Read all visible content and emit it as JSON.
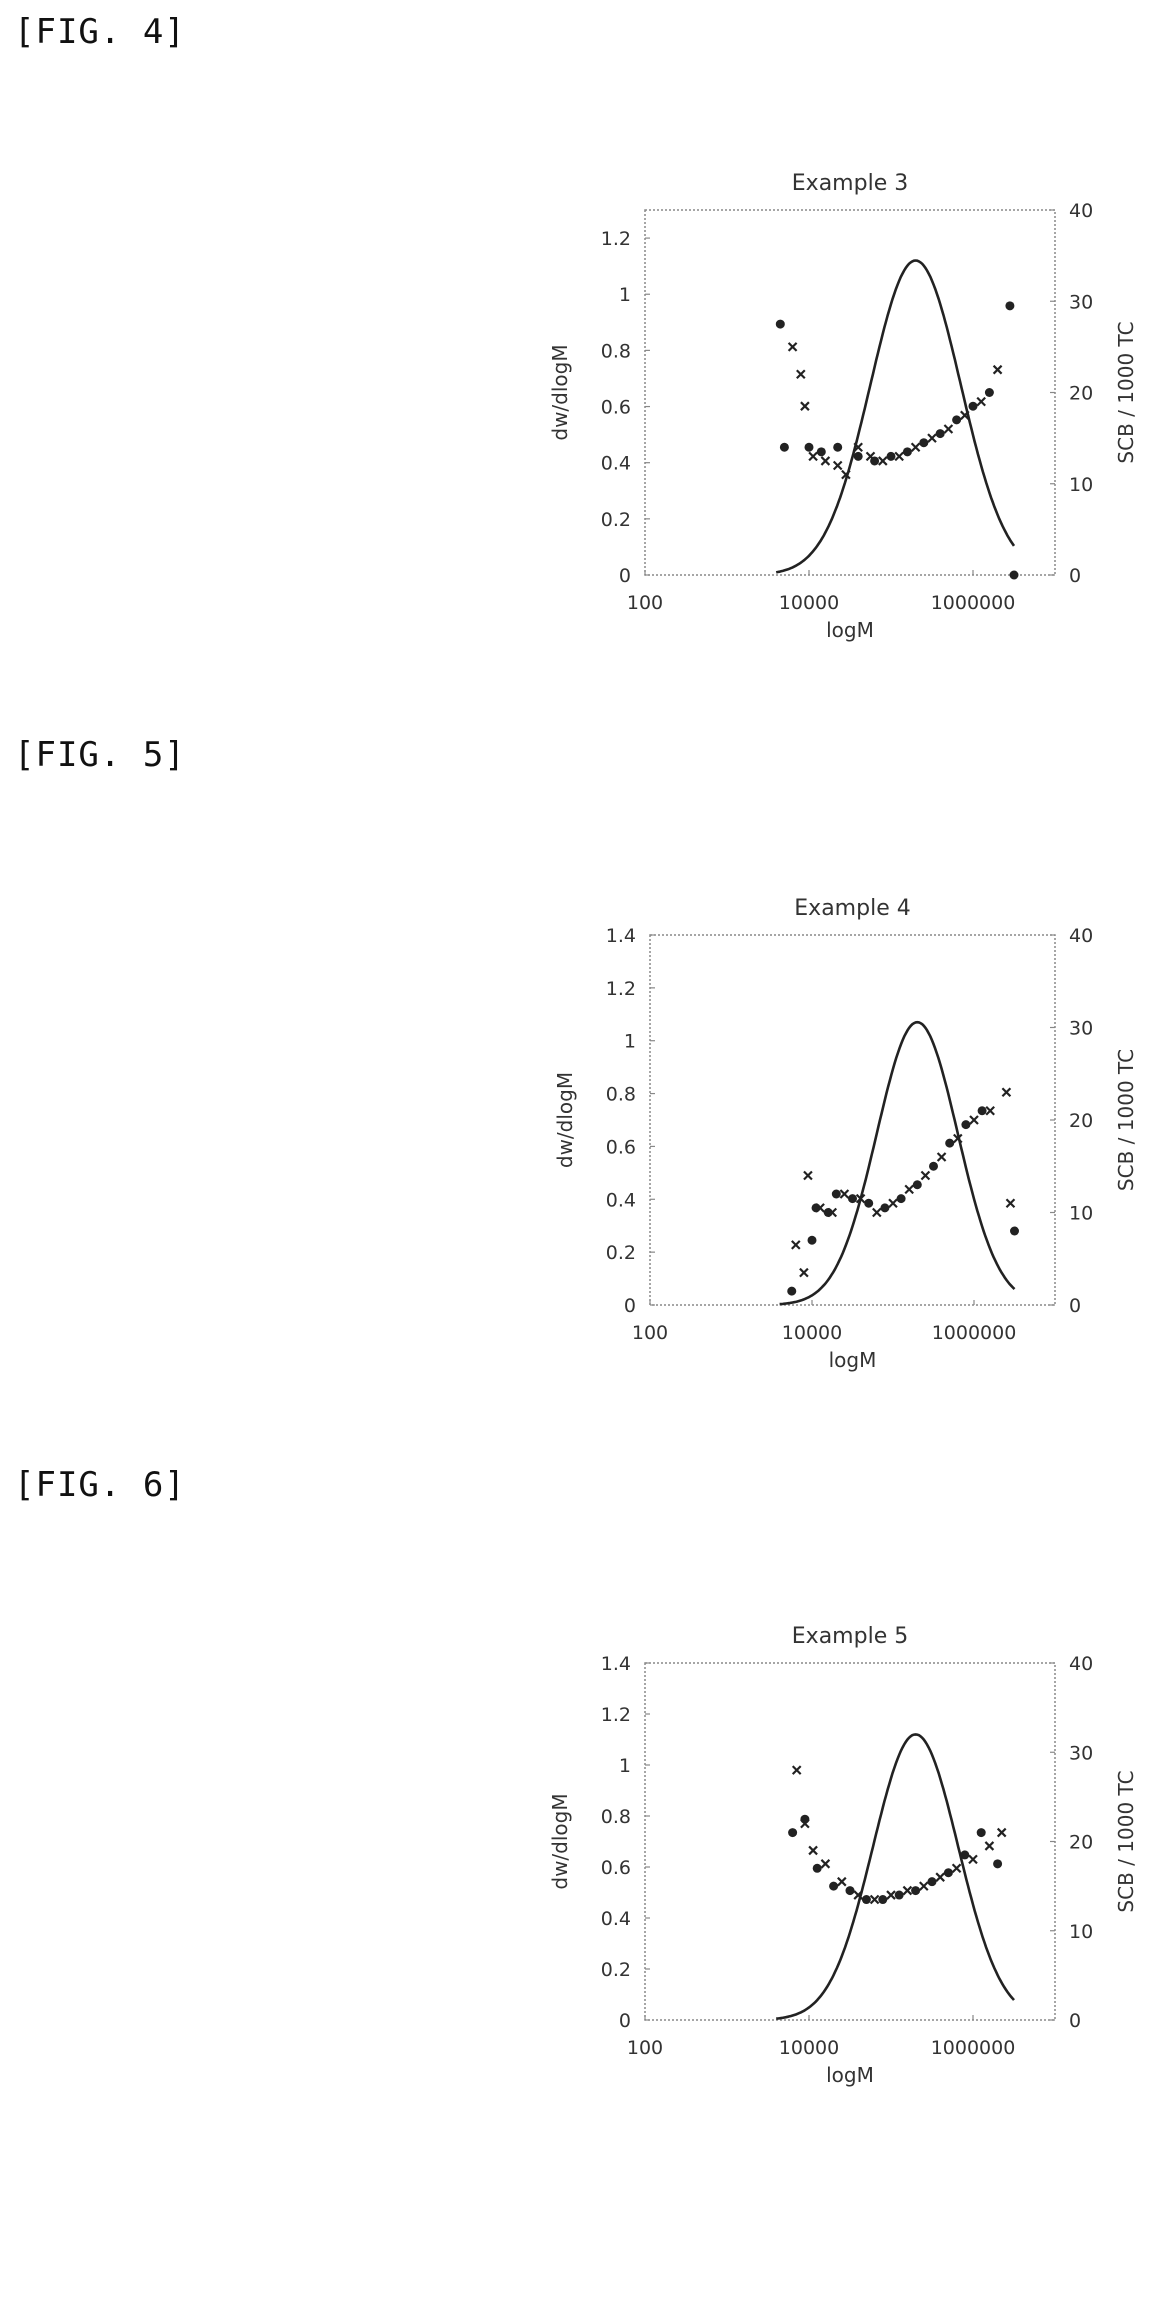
{
  "figures": [
    {
      "label": "[FIG. 4]"
    },
    {
      "label": "[FIG. 5]"
    },
    {
      "label": "[FIG. 6]"
    }
  ],
  "chart_data": [
    {
      "type": "line",
      "title": "Example 3",
      "xlabel": "logM",
      "ylabel": "dw/dlogM",
      "y2label": "SCB / 1000 TC",
      "xscale": "log",
      "xlim": [
        100,
        10000000
      ],
      "xticks": [
        "100",
        "10000",
        "1000000"
      ],
      "ylim": [
        0,
        1.3
      ],
      "yticks": [
        "0",
        "0.2",
        "0.4",
        "0.6",
        "0.8",
        "1",
        "1.2"
      ],
      "y2lim": [
        0,
        40
      ],
      "y2ticks": [
        "0",
        "10",
        "20",
        "30",
        "40"
      ],
      "grid": false,
      "series": [
        {
          "kind": "curve",
          "peak_logM": 5.3,
          "peak": 1.12,
          "sigma": 0.55
        },
        {
          "kind": "dots",
          "axis": "right",
          "points": [
            [
              3.65,
              27.5
            ],
            [
              3.7,
              14
            ],
            [
              4.0,
              14
            ],
            [
              4.15,
              13.5
            ],
            [
              4.35,
              14
            ],
            [
              4.6,
              13
            ],
            [
              4.8,
              12.5
            ],
            [
              5.0,
              13
            ],
            [
              5.2,
              13.5
            ],
            [
              5.4,
              14.5
            ],
            [
              5.6,
              15.5
            ],
            [
              5.8,
              17
            ],
            [
              6.0,
              18.5
            ],
            [
              6.2,
              20
            ],
            [
              6.45,
              29.5
            ],
            [
              6.5,
              0
            ]
          ]
        },
        {
          "kind": "crosses",
          "axis": "right",
          "points": [
            [
              3.8,
              25
            ],
            [
              3.9,
              22
            ],
            [
              3.95,
              18.5
            ],
            [
              4.05,
              13
            ],
            [
              4.2,
              12.5
            ],
            [
              4.35,
              12
            ],
            [
              4.45,
              11
            ],
            [
              4.6,
              14
            ],
            [
              4.75,
              13
            ],
            [
              4.9,
              12.5
            ],
            [
              5.1,
              13
            ],
            [
              5.3,
              14
            ],
            [
              5.5,
              15
            ],
            [
              5.7,
              16
            ],
            [
              5.9,
              17.5
            ],
            [
              6.1,
              19
            ],
            [
              6.3,
              22.5
            ]
          ]
        }
      ]
    },
    {
      "type": "line",
      "title": "Example 4",
      "xlabel": "logM",
      "ylabel": "dw/dlogM",
      "y2label": "SCB / 1000 TC",
      "xscale": "log",
      "xlim": [
        100,
        10000000
      ],
      "xticks": [
        "100",
        "10000",
        "1000000"
      ],
      "ylim": [
        0,
        1.4
      ],
      "yticks": [
        "0",
        "0.2",
        "0.4",
        "0.6",
        "0.8",
        "1",
        "1.2",
        "1.4"
      ],
      "y2lim": [
        0,
        40
      ],
      "y2ticks": [
        "0",
        "10",
        "20",
        "30",
        "40"
      ],
      "grid": false,
      "series": [
        {
          "kind": "curve",
          "peak_logM": 5.3,
          "peak": 1.07,
          "sigma": 0.5
        },
        {
          "kind": "dots",
          "axis": "right",
          "points": [
            [
              3.75,
              1.5
            ],
            [
              4.0,
              7
            ],
            [
              4.05,
              10.5
            ],
            [
              4.2,
              10
            ],
            [
              4.3,
              12
            ],
            [
              4.5,
              11.5
            ],
            [
              4.7,
              11
            ],
            [
              4.9,
              10.5
            ],
            [
              5.1,
              11.5
            ],
            [
              5.3,
              13
            ],
            [
              5.5,
              15
            ],
            [
              5.7,
              17.5
            ],
            [
              5.9,
              19.5
            ],
            [
              6.1,
              21
            ],
            [
              6.5,
              8
            ]
          ]
        },
        {
          "kind": "crosses",
          "axis": "right",
          "points": [
            [
              3.8,
              6.5
            ],
            [
              3.9,
              3.5
            ],
            [
              3.95,
              14
            ],
            [
              4.1,
              10.5
            ],
            [
              4.25,
              10
            ],
            [
              4.4,
              12
            ],
            [
              4.6,
              11.5
            ],
            [
              4.8,
              10
            ],
            [
              5.0,
              11
            ],
            [
              5.2,
              12.5
            ],
            [
              5.4,
              14
            ],
            [
              5.6,
              16
            ],
            [
              5.8,
              18
            ],
            [
              6.0,
              20
            ],
            [
              6.2,
              21
            ],
            [
              6.4,
              23
            ],
            [
              6.45,
              11
            ]
          ]
        }
      ]
    },
    {
      "type": "line",
      "title": "Example 5",
      "xlabel": "logM",
      "ylabel": "dw/dlogM",
      "y2label": "SCB / 1000 TC",
      "xscale": "log",
      "xlim": [
        100,
        10000000
      ],
      "xticks": [
        "100",
        "10000",
        "1000000"
      ],
      "ylim": [
        0,
        1.4
      ],
      "yticks": [
        "0",
        "0.2",
        "0.4",
        "0.6",
        "0.8",
        "1",
        "1.2",
        "1.4"
      ],
      "y2lim": [
        0,
        40
      ],
      "y2ticks": [
        "0",
        "10",
        "20",
        "30",
        "40"
      ],
      "grid": false,
      "series": [
        {
          "kind": "curve",
          "peak_logM": 5.3,
          "peak": 1.12,
          "sigma": 0.52
        },
        {
          "kind": "dots",
          "axis": "right",
          "points": [
            [
              3.8,
              21
            ],
            [
              3.95,
              22.5
            ],
            [
              4.1,
              17
            ],
            [
              4.3,
              15
            ],
            [
              4.5,
              14.5
            ],
            [
              4.7,
              13.5
            ],
            [
              4.9,
              13.5
            ],
            [
              5.1,
              14
            ],
            [
              5.3,
              14.5
            ],
            [
              5.5,
              15.5
            ],
            [
              5.7,
              16.5
            ],
            [
              5.9,
              18.5
            ],
            [
              6.1,
              21
            ],
            [
              6.3,
              17.5
            ]
          ]
        },
        {
          "kind": "crosses",
          "axis": "right",
          "points": [
            [
              3.85,
              28
            ],
            [
              3.95,
              22
            ],
            [
              4.05,
              19
            ],
            [
              4.2,
              17.5
            ],
            [
              4.4,
              15.5
            ],
            [
              4.6,
              14
            ],
            [
              4.8,
              13.5
            ],
            [
              5.0,
              14
            ],
            [
              5.2,
              14.5
            ],
            [
              5.4,
              15
            ],
            [
              5.6,
              16
            ],
            [
              5.8,
              17
            ],
            [
              6.0,
              18
            ],
            [
              6.2,
              19.5
            ],
            [
              6.35,
              21
            ]
          ]
        }
      ]
    }
  ]
}
